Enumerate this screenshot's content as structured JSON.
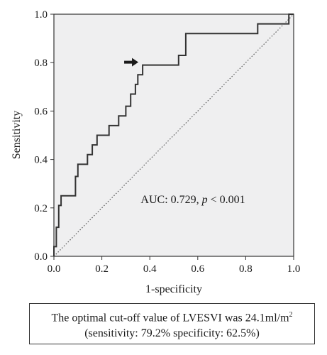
{
  "chart_data": {
    "type": "line",
    "xlabel": "1-specificity",
    "ylabel": "Sensitivity",
    "xlim": [
      0.0,
      1.0
    ],
    "ylim": [
      0.0,
      1.0
    ],
    "xticks": [
      "0.0",
      "0.2",
      "0.4",
      "0.6",
      "0.8",
      "1.0"
    ],
    "yticks": [
      "0.0",
      "0.2",
      "0.4",
      "0.6",
      "0.8",
      "1.0"
    ],
    "grid": false,
    "legend": "none",
    "background_color": "#efeff0",
    "series": [
      {
        "style": "step",
        "color": "#333333",
        "x": [
          0.0,
          0.0,
          0.01,
          0.01,
          0.02,
          0.02,
          0.03,
          0.03,
          0.03,
          0.09,
          0.09,
          0.1,
          0.1,
          0.14,
          0.14,
          0.16,
          0.16,
          0.18,
          0.18,
          0.23,
          0.23,
          0.27,
          0.27,
          0.3,
          0.3,
          0.32,
          0.32,
          0.34,
          0.34,
          0.35,
          0.35,
          0.37,
          0.37,
          0.52,
          0.52,
          0.55,
          0.55,
          0.85,
          0.85,
          0.98,
          0.98,
          1.0
        ],
        "y": [
          0.0,
          0.04,
          0.04,
          0.12,
          0.12,
          0.21,
          0.21,
          0.25,
          0.25,
          0.25,
          0.33,
          0.33,
          0.38,
          0.38,
          0.42,
          0.42,
          0.46,
          0.46,
          0.5,
          0.5,
          0.54,
          0.54,
          0.58,
          0.58,
          0.62,
          0.62,
          0.67,
          0.67,
          0.71,
          0.71,
          0.75,
          0.75,
          0.79,
          0.79,
          0.83,
          0.83,
          0.92,
          0.92,
          0.96,
          0.96,
          1.0,
          1.0
        ]
      },
      {
        "style": "dotted-reference",
        "color": "#555555",
        "x": [
          0.0,
          1.0
        ],
        "y": [
          0.0,
          1.0
        ]
      }
    ],
    "optimal_point": {
      "x": 0.37,
      "y": 0.79
    },
    "annotation": {
      "label": "AUC: 0.729, ",
      "p_symbol": "p",
      "p_rest": " < 0.001",
      "x": 0.58,
      "y": 0.22
    }
  },
  "caption": {
    "line1_prefix": "The optimal cut-off value of LVESVI was 24.1ml/m",
    "line1_sup": "2",
    "line2": "(sensitivity: 79.2% specificity: 62.5%)"
  }
}
